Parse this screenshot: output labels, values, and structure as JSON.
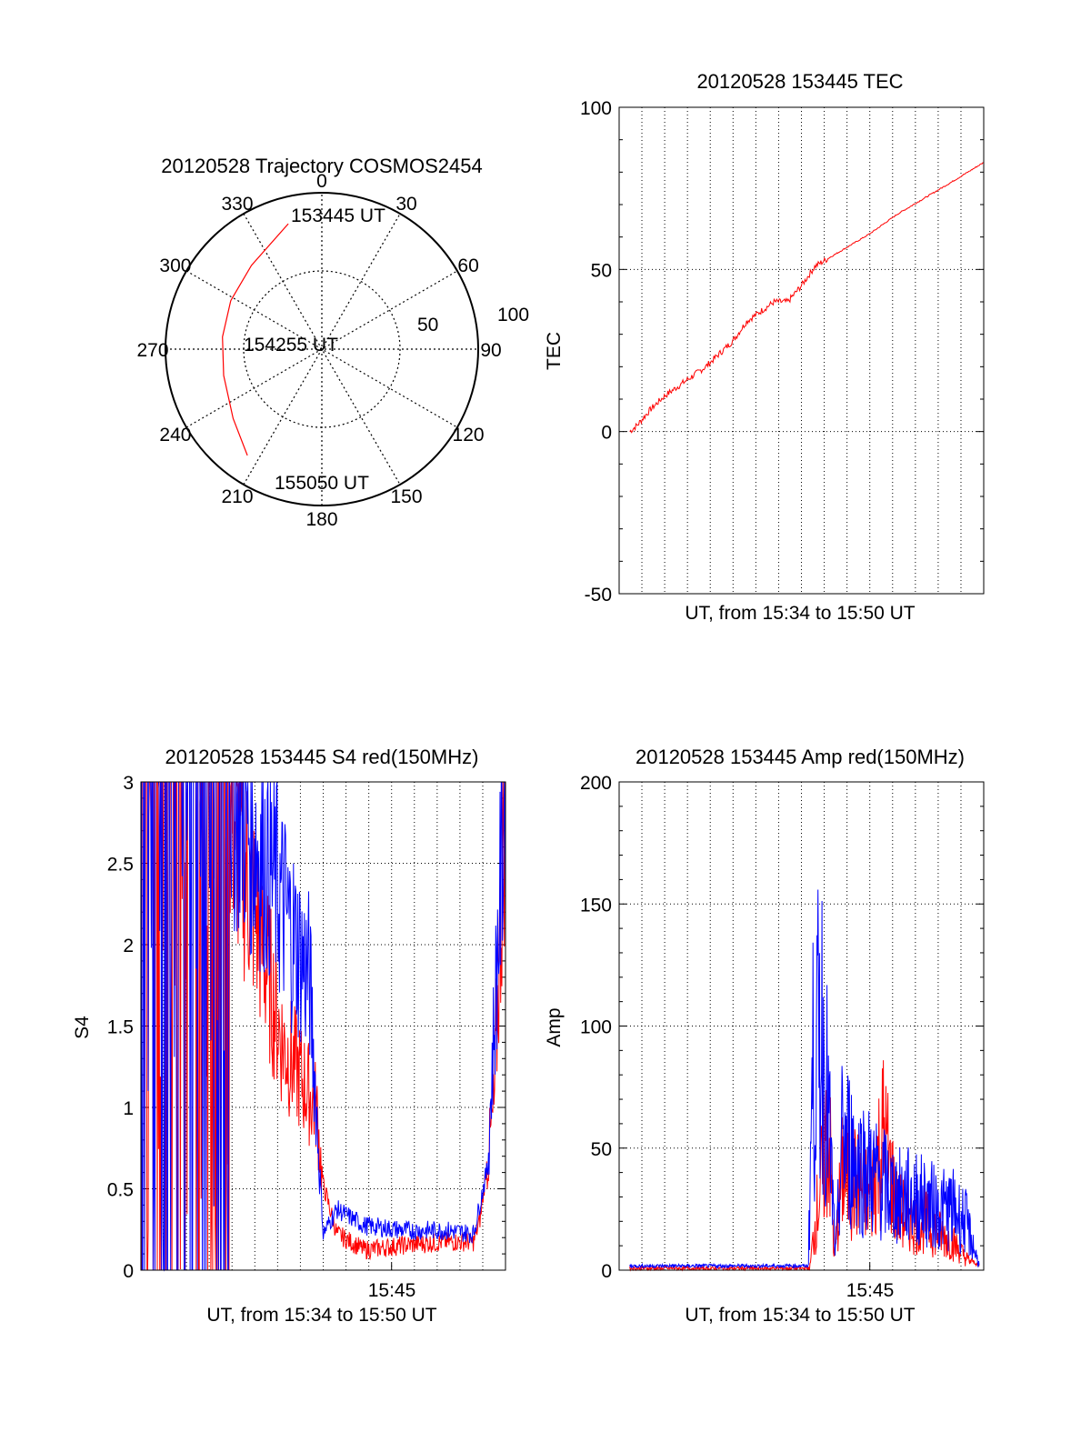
{
  "chart_data": [
    {
      "type": "polar",
      "title": "20120528 Trajectory COSMOS2454",
      "angle_ticks": [
        "0",
        "30",
        "60",
        "90",
        "120",
        "150",
        "180",
        "210",
        "240",
        "270",
        "300",
        "330"
      ],
      "angle_values": [
        0,
        30,
        60,
        90,
        120,
        150,
        180,
        210,
        240,
        270,
        300,
        330
      ],
      "radial_ticks": [
        "50",
        "100"
      ],
      "radial_values": [
        50,
        100
      ],
      "rlim": [
        0,
        100
      ],
      "series": [
        {
          "color": "#ff0000",
          "points": [
            {
              "az": 345,
              "zd": 83
            },
            {
              "az": 320,
              "zd": 70
            },
            {
              "az": 298,
              "zd": 66
            },
            {
              "az": 277,
              "zd": 64
            },
            {
              "az": 255,
              "zd": 65
            },
            {
              "az": 232,
              "zd": 72
            },
            {
              "az": 215,
              "zd": 83
            }
          ]
        }
      ],
      "annotations": [
        "153445 UT",
        "154255 UT",
        "155050 UT"
      ]
    },
    {
      "type": "line",
      "title": "20120528 153445 TEC",
      "xlabel": "UT, from 15:34 to 15:50 UT",
      "ylabel": "TEC",
      "xlim": [
        15.5667,
        15.8333
      ],
      "ylim": [
        -50,
        100
      ],
      "yticks": [
        "100",
        "50",
        "0",
        "-50"
      ],
      "ytick_values": [
        100,
        50,
        0,
        -50
      ],
      "grid": true,
      "series": [
        {
          "color": "#ff0000",
          "x": [
            15.5745,
            15.58,
            15.59,
            15.6,
            15.61,
            15.62,
            15.63,
            15.64,
            15.65,
            15.655,
            15.66,
            15.67,
            15.68,
            15.69,
            15.7,
            15.71,
            15.73,
            15.75,
            15.77,
            15.79,
            15.81,
            15.8333
          ],
          "y": [
            0,
            2,
            7,
            11,
            14,
            17,
            20,
            24,
            28,
            31,
            34,
            37,
            40,
            40,
            45,
            51,
            56,
            61,
            67,
            72,
            77,
            83
          ]
        }
      ]
    },
    {
      "type": "line",
      "title": "20120528 153445 S4 red(150MHz)",
      "xlabel": "UT, from 15:34 to 15:50 UT",
      "ylabel": "S4",
      "xlim": [
        15.5667,
        15.8333
      ],
      "ylim": [
        0,
        3
      ],
      "yticks": [
        "3",
        "2.5",
        "2",
        "1.5",
        "1",
        "0.5",
        "0"
      ],
      "ytick_values": [
        3,
        2.5,
        2,
        1.5,
        1,
        0.5,
        0
      ],
      "xticks": [
        "15:45"
      ],
      "xtick_values": [
        15.75
      ],
      "grid": true,
      "series": [
        {
          "color": "#ff0000",
          "x": [
            15.5667,
            15.628,
            15.65,
            15.67,
            15.695,
            15.7,
            15.71,
            15.73,
            15.76,
            15.79,
            15.81,
            15.815,
            15.825,
            15.8333
          ],
          "y": [
            3,
            3,
            2.2,
            1.4,
            1.0,
            0.5,
            0.2,
            0.1,
            0.13,
            0.15,
            0.15,
            0.3,
            1.0,
            3.0
          ]
        },
        {
          "color": "#0000ff",
          "x": [
            15.5667,
            15.63,
            15.66,
            15.68,
            15.69,
            15.7,
            15.71,
            15.73,
            15.76,
            15.79,
            15.81,
            15.82,
            15.8333
          ],
          "y": [
            3,
            3,
            2.5,
            2.0,
            1.8,
            0.2,
            0.35,
            0.25,
            0.22,
            0.22,
            0.2,
            0.6,
            3.0
          ]
        }
      ]
    },
    {
      "type": "line",
      "title": "20120528 153445 Amp red(150MHz)",
      "xlabel": "UT, from 15:34 to 15:50 UT",
      "ylabel": "Amp",
      "xlim": [
        15.5667,
        15.8333
      ],
      "ylim": [
        0,
        200
      ],
      "yticks": [
        "200",
        "150",
        "100",
        "50",
        "0"
      ],
      "ytick_values": [
        200,
        150,
        100,
        50,
        0
      ],
      "xticks": [
        "15:45"
      ],
      "xtick_values": [
        15.75
      ],
      "grid": true,
      "series": [
        {
          "color": "#ff0000",
          "x": [
            15.5745,
            15.706,
            15.708,
            15.72,
            15.724,
            15.73,
            15.74,
            15.75,
            15.76,
            15.77,
            15.78,
            15.79,
            15.8,
            15.81,
            15.82,
            15.83
          ],
          "y": [
            0,
            0,
            10,
            60,
            5,
            40,
            35,
            30,
            55,
            25,
            20,
            20,
            15,
            12,
            5,
            1
          ]
        },
        {
          "color": "#0000ff",
          "x": [
            15.5745,
            15.705,
            15.708,
            15.715,
            15.72,
            15.725,
            15.73,
            15.74,
            15.75,
            15.76,
            15.77,
            15.78,
            15.79,
            15.8,
            15.81,
            15.82,
            15.83
          ],
          "y": [
            1,
            1,
            80,
            100,
            60,
            5,
            55,
            45,
            40,
            35,
            30,
            30,
            28,
            25,
            25,
            20,
            2
          ]
        }
      ]
    }
  ]
}
